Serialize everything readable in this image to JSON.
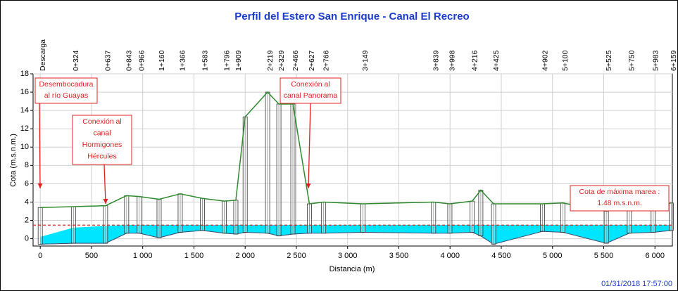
{
  "chart_data": {
    "type": "profile",
    "title": "Perfil del Estero San Enrique - Canal El Recreo",
    "xlabel": "Distancia (m)",
    "ylabel": "Cota (m.s.n.m.)",
    "timestamp": "01/31/2018 17:57:00",
    "x": [
      0,
      324,
      637,
      843,
      966,
      1160,
      1366,
      1583,
      1796,
      1909,
      2000,
      2219,
      2329,
      2466,
      2627,
      2766,
      3149,
      3839,
      3998,
      4216,
      4300,
      4425,
      4902,
      5100,
      5525,
      5750,
      5983,
      6159
    ],
    "node_labels": [
      "Descarga",
      "0+324",
      "0+637",
      "0+843",
      "0+966",
      "1+160",
      "1+366",
      "1+583",
      "1+796",
      "1+909",
      null,
      "2+219",
      "2+329",
      "2+466",
      "2+627",
      "2+766",
      "3+149",
      "3+839",
      "3+998",
      "4+216",
      null,
      "4+425",
      "4+902",
      "5+100",
      "5+525",
      "5+750",
      "5+983",
      "6+159"
    ],
    "ground": {
      "color": "#2e8b2e",
      "values": [
        3.4,
        3.5,
        3.6,
        4.7,
        4.6,
        4.3,
        4.9,
        4.4,
        4.1,
        4.2,
        13.3,
        16.0,
        14.7,
        14.7,
        3.8,
        4.0,
        3.8,
        4.0,
        3.8,
        4.1,
        5.3,
        3.8,
        3.8,
        3.9,
        3.0,
        3.9,
        3.5,
        3.9
      ]
    },
    "water": {
      "color": "#00e5ff",
      "values": [
        0.2,
        1.2,
        1.4,
        1.5,
        1.5,
        1.5,
        1.5,
        1.5,
        1.5,
        1.5,
        1.5,
        1.5,
        1.5,
        1.5,
        1.5,
        1.5,
        1.5,
        1.5,
        1.5,
        1.5,
        1.5,
        1.5,
        1.5,
        1.5,
        1.5,
        1.5,
        1.5,
        1.5
      ]
    },
    "invert": {
      "color": "#1f3a93",
      "values": [
        -0.6,
        -0.5,
        -0.5,
        0.6,
        0.6,
        0.1,
        0.7,
        0.9,
        0.6,
        0.5,
        0.7,
        0.6,
        0.3,
        0.5,
        0.6,
        0.6,
        0.7,
        0.6,
        0.6,
        0.7,
        0.3,
        -0.6,
        0.8,
        0.7,
        -0.5,
        0.6,
        0.7,
        0.9
      ]
    },
    "tide_level": 1.48,
    "tide_color": "#e02020",
    "annotations": [
      {
        "lines": [
          "Desembocadura",
          "al río Guayas"
        ]
      },
      {
        "lines": [
          "Conexión al",
          "canal",
          "Hormigones",
          "Hércules"
        ]
      },
      {
        "lines": [
          "Conexión al",
          "canal Panorama"
        ]
      },
      {
        "lines": [
          "Cota de máxima marea :",
          "1.48 m.s.n.m."
        ]
      }
    ],
    "xlim": [
      -70,
      6170
    ],
    "ylim": [
      -0.8,
      18
    ],
    "xticks": [
      0,
      500,
      {
        "value": 1000,
        "label": "1 000"
      },
      {
        "value": 1500,
        "label": "1 500"
      },
      {
        "value": 2000,
        "label": "2 000"
      },
      {
        "value": 2500,
        "label": "2 500"
      },
      {
        "value": 3000,
        "label": "3 000"
      },
      {
        "value": 3500,
        "label": "3 500"
      },
      {
        "value": 4000,
        "label": "4 000"
      },
      {
        "value": 4500,
        "label": "4 500"
      },
      {
        "value": 5000,
        "label": "5 000"
      },
      {
        "value": 5500,
        "label": "5 500"
      },
      {
        "value": 6000,
        "label": "6 000"
      }
    ],
    "yticks": [
      0,
      2,
      4,
      6,
      8,
      10,
      12,
      14,
      16,
      18
    ],
    "grid": true
  }
}
